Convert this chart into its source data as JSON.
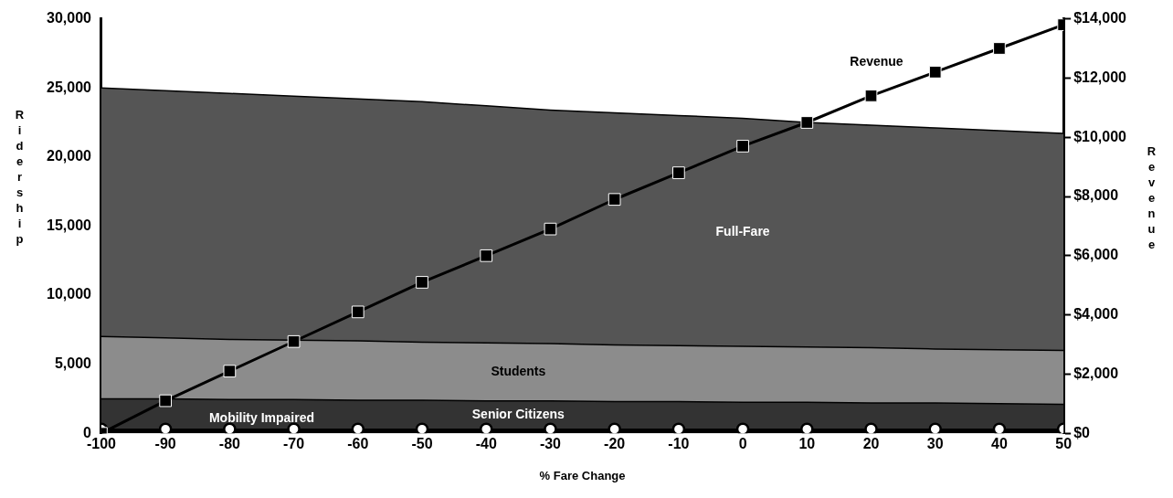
{
  "chart_data": {
    "type": "area",
    "xlabel": "% Fare Change",
    "ylabel": "Ridership",
    "y2label": "Revenue",
    "stacked": true,
    "legend": false,
    "grid": false,
    "x": [
      -100,
      -90,
      -80,
      -70,
      -60,
      -50,
      -40,
      -30,
      -20,
      -10,
      0,
      10,
      20,
      30,
      40,
      50
    ],
    "xlim": [
      -100,
      50
    ],
    "xticks": [
      -100,
      -90,
      -80,
      -70,
      -60,
      -50,
      -40,
      -30,
      -20,
      -10,
      0,
      10,
      20,
      30,
      40,
      50
    ],
    "ylim": [
      0,
      30000
    ],
    "yticks": [
      0,
      {
        "value": 5000,
        "label": "5,000"
      },
      {
        "value": 10000,
        "label": "10,000"
      },
      {
        "value": 15000,
        "label": "15,000"
      },
      {
        "value": 20000,
        "label": "20,000"
      },
      {
        "value": 25000,
        "label": "25,000"
      },
      {
        "value": 30000,
        "label": "30,000"
      }
    ],
    "y2lim": [
      0,
      14000
    ],
    "y2ticks": [
      {
        "value": 0,
        "label": "$0"
      },
      {
        "value": 2000,
        "label": "$2,000"
      },
      {
        "value": 4000,
        "label": "$4,000"
      },
      {
        "value": 6000,
        "label": "$6,000"
      },
      {
        "value": 8000,
        "label": "$8,000"
      },
      {
        "value": 10000,
        "label": "$10,000"
      },
      {
        "value": 12000,
        "label": "$12,000"
      },
      {
        "value": 14000,
        "label": "$14,000"
      }
    ],
    "series": [
      {
        "name": "Mobility Impaired",
        "color": "#000000",
        "marker": "circle",
        "values": [
          300,
          300,
          300,
          300,
          300,
          300,
          300,
          300,
          300,
          300,
          300,
          300,
          300,
          300,
          300,
          300
        ]
      },
      {
        "name": "Senior Citizens",
        "color": "#333333",
        "values": [
          2200,
          2200,
          2150,
          2150,
          2100,
          2100,
          2050,
          2050,
          2000,
          2000,
          1950,
          1950,
          1900,
          1900,
          1850,
          1800
        ]
      },
      {
        "name": "Students",
        "color": "#8c8c8c",
        "values": [
          4500,
          4400,
          4350,
          4300,
          4300,
          4200,
          4200,
          4150,
          4100,
          4050,
          4050,
          4000,
          4000,
          3900,
          3900,
          3900
        ]
      },
      {
        "name": "Full-Fare",
        "color": "#555555",
        "values": [
          18000,
          17900,
          17800,
          17650,
          17500,
          17400,
          17150,
          16900,
          16800,
          16650,
          16500,
          16250,
          16100,
          16000,
          15850,
          15700
        ]
      },
      {
        "name": "Revenue",
        "type": "line",
        "axis": "y2",
        "color": "#000000",
        "marker": "square",
        "values": [
          0,
          1100,
          2100,
          3100,
          4100,
          5100,
          6000,
          6900,
          7900,
          8800,
          9700,
          10500,
          11400,
          12200,
          13000,
          13800
        ]
      }
    ]
  }
}
